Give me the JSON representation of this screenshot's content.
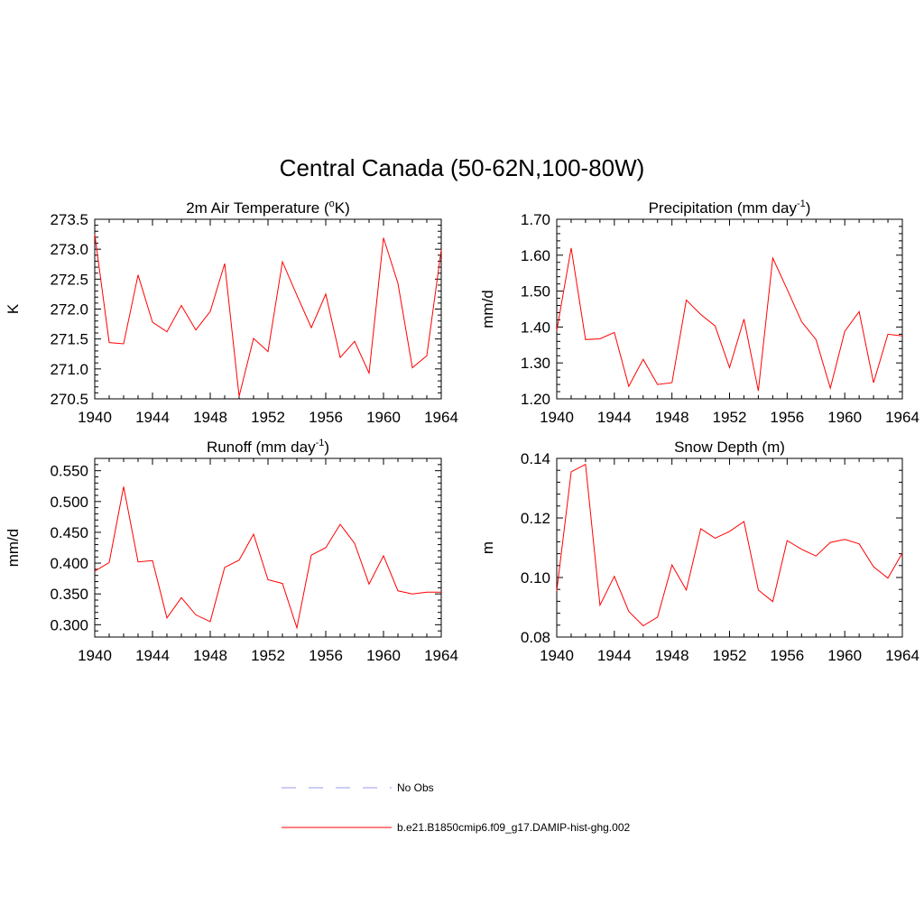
{
  "figure": {
    "title": "Central Canada (50-62N,100-80W)"
  },
  "legend": {
    "items": [
      {
        "label": "No Obs",
        "color": "#9999ee",
        "dash": true
      },
      {
        "label": "b.e21.B1850cmip6.f09_g17.DAMIP-hist-ghg.002",
        "color": "#ff0000",
        "dash": false
      }
    ]
  },
  "chart_data": [
    {
      "type": "line",
      "title": "2m Air Temperature (",
      "title_sup": "o",
      "title_after": "K)",
      "ylabel": "K",
      "xlim": [
        1940,
        1964
      ],
      "ylim": [
        270.5,
        273.5
      ],
      "xticks": [
        1940,
        1944,
        1948,
        1952,
        1956,
        1960,
        1964
      ],
      "yticks": [
        270.5,
        271.0,
        271.5,
        272.0,
        272.5,
        273.0,
        273.5
      ],
      "ytick_labels": [
        "270.5",
        "271.0",
        "271.5",
        "272.0",
        "272.5",
        "273.0",
        "273.5"
      ],
      "ymajor_step": 0.5,
      "yminor_per_major": 5,
      "x": [
        1940,
        1941,
        1942,
        1943,
        1944,
        1945,
        1946,
        1947,
        1948,
        1949,
        1950,
        1951,
        1952,
        1953,
        1954,
        1955,
        1956,
        1957,
        1958,
        1959,
        1960,
        1961,
        1962,
        1963,
        1964
      ],
      "series": [
        {
          "color": "#ff0000",
          "values": [
            273.25,
            271.44,
            271.42,
            272.57,
            271.78,
            271.62,
            272.06,
            271.65,
            271.96,
            272.76,
            270.54,
            271.51,
            271.29,
            272.79,
            272.23,
            271.69,
            272.25,
            271.19,
            271.46,
            270.93,
            273.19,
            272.43,
            271.02,
            271.22,
            272.99
          ]
        }
      ]
    },
    {
      "type": "line",
      "title": "Precipitation (mm day",
      "title_sup": "-1",
      "title_after": ")",
      "ylabel": "mm/d",
      "xlim": [
        1940,
        1964
      ],
      "ylim": [
        1.2,
        1.7
      ],
      "xticks": [
        1940,
        1944,
        1948,
        1952,
        1956,
        1960,
        1964
      ],
      "yticks": [
        1.2,
        1.3,
        1.4,
        1.5,
        1.6,
        1.7
      ],
      "ytick_labels": [
        "1.20",
        "1.30",
        "1.40",
        "1.50",
        "1.60",
        "1.70"
      ],
      "ymajor_step": 0.1,
      "yminor_per_major": 5,
      "x": [
        1940,
        1941,
        1942,
        1943,
        1944,
        1945,
        1946,
        1947,
        1948,
        1949,
        1950,
        1951,
        1952,
        1953,
        1954,
        1955,
        1956,
        1957,
        1958,
        1959,
        1960,
        1961,
        1962,
        1963,
        1964
      ],
      "series": [
        {
          "color": "#ff0000",
          "values": [
            1.39,
            1.62,
            1.365,
            1.367,
            1.385,
            1.235,
            1.31,
            1.24,
            1.245,
            1.475,
            1.435,
            1.403,
            1.287,
            1.422,
            1.222,
            1.592,
            1.505,
            1.415,
            1.365,
            1.23,
            1.388,
            1.443,
            1.245,
            1.38,
            1.375
          ]
        }
      ]
    },
    {
      "type": "line",
      "title": "Runoff (mm day",
      "title_sup": "-1",
      "title_after": ")",
      "ylabel": "mm/d",
      "xlim": [
        1940,
        1964
      ],
      "ylim": [
        0.28,
        0.57
      ],
      "xticks": [
        1940,
        1944,
        1948,
        1952,
        1956,
        1960,
        1964
      ],
      "yticks": [
        0.3,
        0.35,
        0.4,
        0.45,
        0.5,
        0.55
      ],
      "ytick_labels": [
        "0.300",
        "0.350",
        "0.400",
        "0.450",
        "0.500",
        "0.550"
      ],
      "ymajor_step": 0.05,
      "yminor_per_major": 5,
      "x": [
        1940,
        1941,
        1942,
        1943,
        1944,
        1945,
        1946,
        1947,
        1948,
        1949,
        1950,
        1951,
        1952,
        1953,
        1954,
        1955,
        1956,
        1957,
        1958,
        1959,
        1960,
        1961,
        1962,
        1963,
        1964
      ],
      "series": [
        {
          "color": "#ff0000",
          "values": [
            0.387,
            0.401,
            0.524,
            0.402,
            0.404,
            0.311,
            0.344,
            0.316,
            0.305,
            0.393,
            0.405,
            0.447,
            0.373,
            0.367,
            0.295,
            0.413,
            0.425,
            0.463,
            0.432,
            0.366,
            0.412,
            0.355,
            0.35,
            0.353,
            0.353
          ]
        }
      ]
    },
    {
      "type": "line",
      "title": "Snow Depth (m)",
      "title_sup": "",
      "title_after": "",
      "ylabel": "m",
      "xlim": [
        1940,
        1964
      ],
      "ylim": [
        0.08,
        0.14
      ],
      "xticks": [
        1940,
        1944,
        1948,
        1952,
        1956,
        1960,
        1964
      ],
      "yticks": [
        0.08,
        0.1,
        0.12,
        0.14
      ],
      "ytick_labels": [
        "0.08",
        "0.10",
        "0.12",
        "0.14"
      ],
      "ymajor_step": 0.02,
      "yminor_per_major": 5,
      "x": [
        1940,
        1941,
        1942,
        1943,
        1944,
        1945,
        1946,
        1947,
        1948,
        1949,
        1950,
        1951,
        1952,
        1953,
        1954,
        1955,
        1956,
        1957,
        1958,
        1959,
        1960,
        1961,
        1962,
        1963,
        1964
      ],
      "series": [
        {
          "color": "#ff0000",
          "values": [
            0.0955,
            0.1355,
            0.138,
            0.0907,
            0.1004,
            0.0886,
            0.0838,
            0.0867,
            0.1042,
            0.0958,
            0.1164,
            0.1132,
            0.1155,
            0.1188,
            0.0958,
            0.0919,
            0.1124,
            0.1095,
            0.1072,
            0.1118,
            0.1128,
            0.1113,
            0.1036,
            0.0998,
            0.1082
          ]
        }
      ]
    }
  ]
}
